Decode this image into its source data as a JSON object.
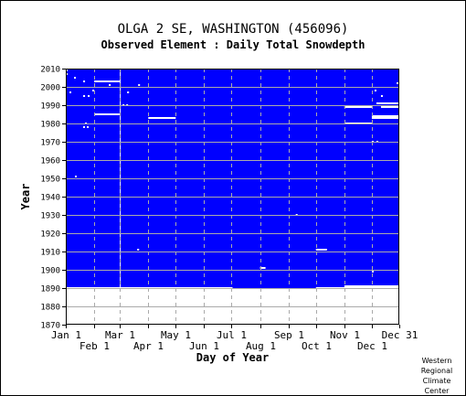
{
  "credit": [
    "Western",
    "Regional",
    "Climate",
    "Center"
  ],
  "chart_data": {
    "type": "heatmap",
    "title": "OLGA 2 SE, WASHINGTON   (456096)",
    "subtitle": "Observed Element : Daily Total Snowdepth",
    "xlabel": "Day of Year",
    "ylabel": "Year",
    "xlim": [
      1,
      365
    ],
    "ylim": [
      1870,
      2010
    ],
    "x_ticks": [
      {
        "label": "Jan 1",
        "day": 1,
        "row": 1
      },
      {
        "label": "Feb 1",
        "day": 32,
        "row": 2
      },
      {
        "label": "Mar 1",
        "day": 60,
        "row": 1
      },
      {
        "label": "Apr 1",
        "day": 91,
        "row": 2
      },
      {
        "label": "May 1",
        "day": 121,
        "row": 1
      },
      {
        "label": "Jun 1",
        "day": 152,
        "row": 2
      },
      {
        "label": "Jul 1",
        "day": 182,
        "row": 1
      },
      {
        "label": "Aug 1",
        "day": 213,
        "row": 2
      },
      {
        "label": "Sep 1",
        "day": 244,
        "row": 1
      },
      {
        "label": "Oct 1",
        "day": 274,
        "row": 2
      },
      {
        "label": "Nov 1",
        "day": 305,
        "row": 1
      },
      {
        "label": "Dec 1",
        "day": 335,
        "row": 2
      },
      {
        "label": "Dec 31",
        "day": 365,
        "row": 1
      }
    ],
    "y_ticks": [
      1870,
      1880,
      1890,
      1900,
      1910,
      1920,
      1930,
      1940,
      1950,
      1960,
      1970,
      1980,
      1990,
      2000,
      2010
    ],
    "grid": true,
    "colors": {
      "observed": "#0000ff",
      "missing": "#ffffff",
      "background": "#ffffff",
      "grid": "#aaaaaa"
    },
    "observed_years": [
      1890,
      2010
    ],
    "missing_runs": [
      {
        "year": 1890,
        "start": 1,
        "end": 182
      },
      {
        "year": 1890,
        "start": 274,
        "end": 365
      },
      {
        "year": 1891,
        "start": 305,
        "end": 365
      },
      {
        "year": 1899,
        "start": 335,
        "end": 336
      },
      {
        "year": 1901,
        "start": 213,
        "end": 218
      },
      {
        "year": 1911,
        "start": 274,
        "end": 285
      },
      {
        "year": 1911,
        "start": 79,
        "end": 80
      },
      {
        "year": 1930,
        "start": 252,
        "end": 253
      },
      {
        "year": 1951,
        "start": 11,
        "end": 12
      },
      {
        "year": 1970,
        "start": 335,
        "end": 336
      },
      {
        "year": 1970,
        "start": 340,
        "end": 341
      },
      {
        "year": 1978,
        "start": 20,
        "end": 21
      },
      {
        "year": 1978,
        "start": 24,
        "end": 25
      },
      {
        "year": 1980,
        "start": 22,
        "end": 23
      },
      {
        "year": 1980,
        "start": 305,
        "end": 334
      },
      {
        "year": 1983,
        "start": 91,
        "end": 120
      },
      {
        "year": 1983,
        "start": 335,
        "end": 365
      },
      {
        "year": 1984,
        "start": 335,
        "end": 365
      },
      {
        "year": 1985,
        "start": 32,
        "end": 59
      },
      {
        "year": 1989,
        "start": 305,
        "end": 334
      },
      {
        "year": 1989,
        "start": 345,
        "end": 365
      },
      {
        "year": 1990,
        "start": 63,
        "end": 64
      },
      {
        "year": 1990,
        "start": 67,
        "end": 68
      },
      {
        "year": 1991,
        "start": 340,
        "end": 365
      },
      {
        "year": 1995,
        "start": 20,
        "end": 21
      },
      {
        "year": 1995,
        "start": 25,
        "end": 26
      },
      {
        "year": 1995,
        "start": 345,
        "end": 346
      },
      {
        "year": 1997,
        "start": 5,
        "end": 6
      },
      {
        "year": 1997,
        "start": 68,
        "end": 69
      },
      {
        "year": 1998,
        "start": 30,
        "end": 31
      },
      {
        "year": 1998,
        "start": 338,
        "end": 339
      },
      {
        "year": 2001,
        "start": 48,
        "end": 49
      },
      {
        "year": 2001,
        "start": 80,
        "end": 81
      },
      {
        "year": 2002,
        "start": 362,
        "end": 363
      },
      {
        "year": 2003,
        "start": 32,
        "end": 59
      },
      {
        "year": 2003,
        "start": 20,
        "end": 21
      },
      {
        "year": 2005,
        "start": 10,
        "end": 11
      },
      {
        "year": 2007,
        "start": 1,
        "end": 2
      },
      {
        "year": 2009,
        "start": 1,
        "end": 2
      }
    ],
    "missing_columns": [
      {
        "start": 60,
        "end": 60,
        "years": [
          1890,
          2010
        ]
      }
    ]
  }
}
